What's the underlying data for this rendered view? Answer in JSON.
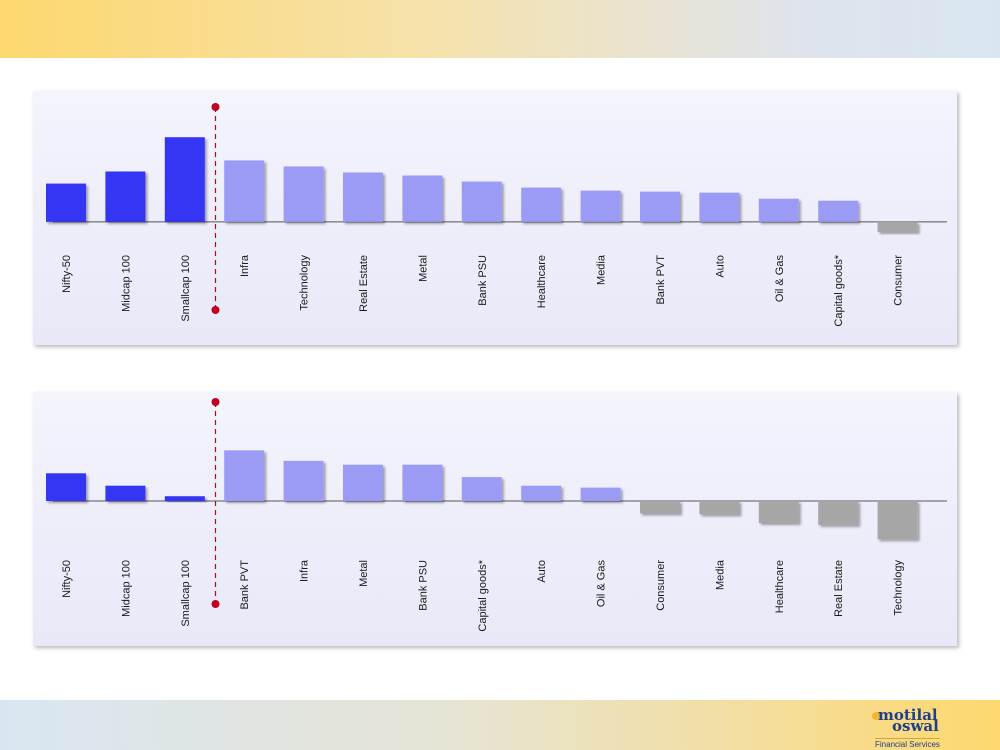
{
  "colors": {
    "index_bar": "#3535f4",
    "sector_positive": "#9b9bf6",
    "sector_negative": "#a6a6a6",
    "divider": "#c00020"
  },
  "logo": {
    "line1": "motilal",
    "line2": "oswal",
    "tagline": "Financial Services"
  },
  "chart_data": [
    {
      "type": "bar",
      "title": "",
      "xlabel": "",
      "ylabel": "",
      "categories": [
        "Nifty-50",
        "Midcap 100",
        "Smallcap 100",
        "Infra",
        "Technology",
        "Real Estate",
        "Metal",
        "Bank PSU",
        "Healthcare",
        "Media",
        "Bank PVT",
        "Auto",
        "Oil & Gas",
        "Capital goods*",
        "Consumer"
      ],
      "values": [
        38,
        50,
        84,
        61,
        55,
        49,
        46,
        40,
        34,
        31,
        30,
        29,
        23,
        21,
        -10
      ],
      "bar_groups": [
        "index",
        "index",
        "index",
        "sector",
        "sector",
        "sector",
        "sector",
        "sector",
        "sector",
        "sector",
        "sector",
        "sector",
        "sector",
        "sector",
        "sector"
      ],
      "ylim": [
        -15,
        110
      ],
      "divider_after_index": 2,
      "grid": false,
      "legend": "none"
    },
    {
      "type": "bar",
      "title": "",
      "xlabel": "",
      "ylabel": "",
      "categories": [
        "Nifty-50",
        "Midcap 100",
        "Smallcap 100",
        "Bank PVT",
        "Infra",
        "Metal",
        "Bank PSU",
        "Capital goods*",
        "Auto",
        "Oil & Gas",
        "Consumer",
        "Media",
        "Healthcare",
        "Real Estate",
        "Technology"
      ],
      "values": [
        29,
        16,
        5,
        53,
        42,
        38,
        38,
        25,
        16,
        14,
        -13,
        -14,
        -23,
        -25,
        -40
      ],
      "bar_groups": [
        "index",
        "index",
        "index",
        "sector",
        "sector",
        "sector",
        "sector",
        "sector",
        "sector",
        "sector",
        "sector",
        "sector",
        "sector",
        "sector",
        "sector"
      ],
      "ylim": [
        -45,
        90
      ],
      "divider_after_index": 2,
      "grid": false,
      "legend": "none"
    }
  ]
}
